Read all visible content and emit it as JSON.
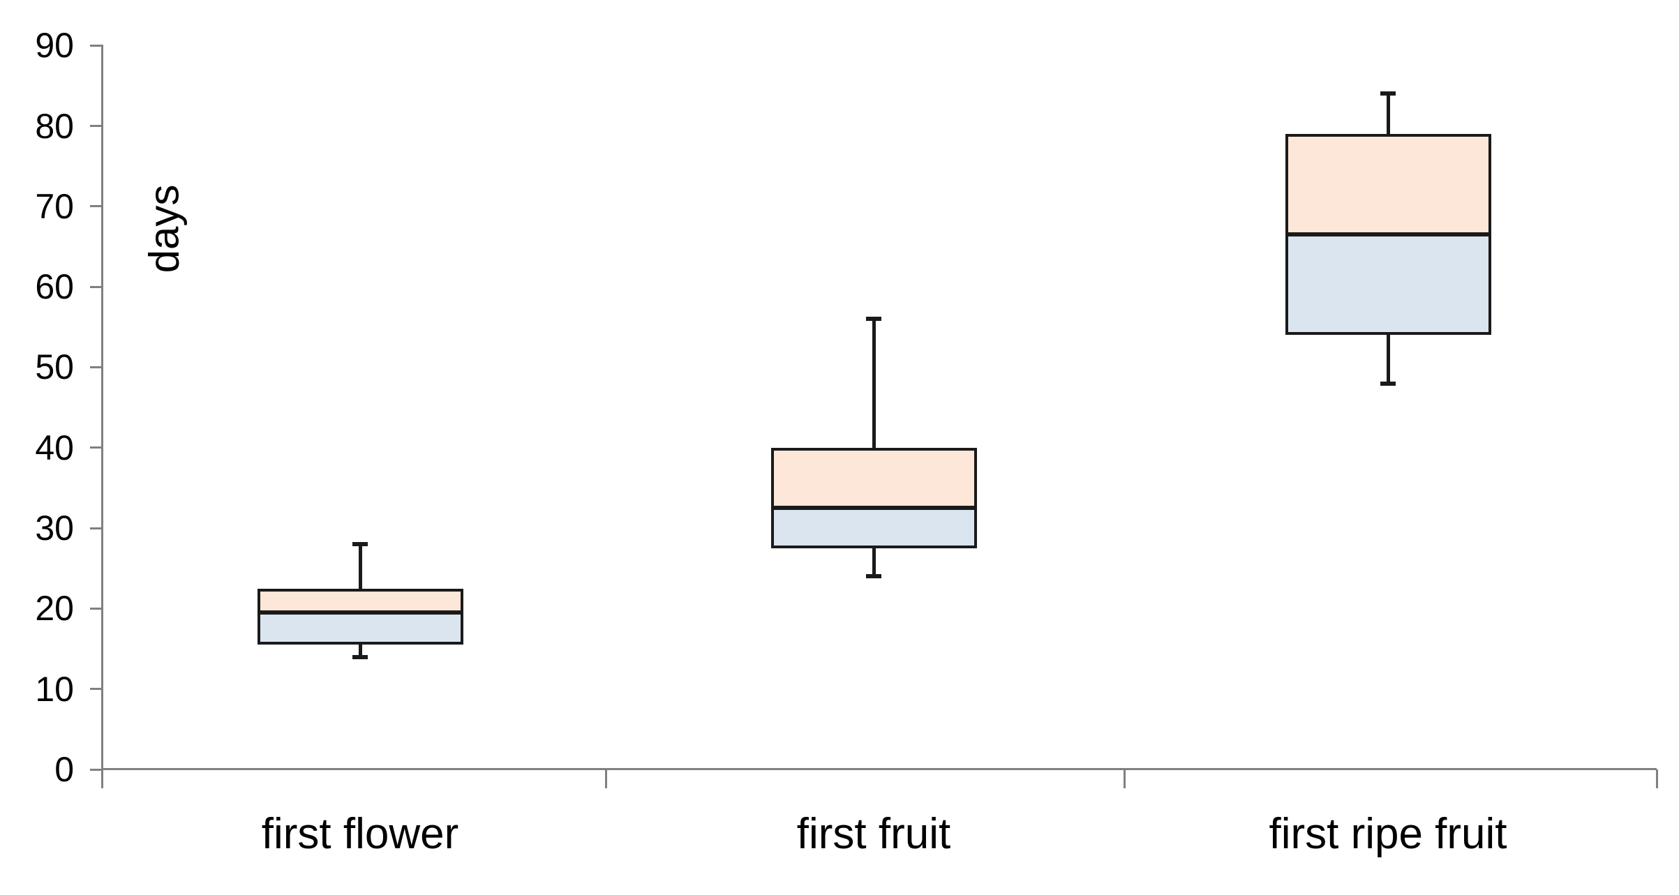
{
  "chart_data": {
    "type": "boxplot",
    "title": "",
    "ylabel": "days",
    "xlabel": "",
    "categories": [
      "first flower",
      "first fruit",
      "first ripe fruit"
    ],
    "series": [
      {
        "category": "first flower",
        "min": 14,
        "q1": 15.5,
        "median": 19.5,
        "q3": 22.5,
        "max": 28
      },
      {
        "category": "first fruit",
        "min": 24,
        "q1": 27.5,
        "median": 32.5,
        "q3": 40,
        "max": 56
      },
      {
        "category": "first ripe fruit",
        "min": 48,
        "q1": 54,
        "median": 66.5,
        "q3": 79,
        "max": 84
      }
    ],
    "ylim": [
      0,
      90
    ],
    "yticks": [
      0,
      10,
      20,
      30,
      40,
      50,
      60,
      70,
      80,
      90
    ],
    "grid": false,
    "legend": false,
    "layout_hints": {
      "box_upper_segment": "q3 to median",
      "box_lower_segment": "median to q1",
      "tick_side": "outside-left"
    },
    "colors": {
      "box_upper_fill": "#fce7d8",
      "box_lower_fill": "#dbe5f0",
      "box_border": "#1a1a1a",
      "median": "#1a1a1a",
      "whisker": "#1a1a1a",
      "axis": "#808080",
      "text": "#000000",
      "background": "#ffffff"
    }
  }
}
